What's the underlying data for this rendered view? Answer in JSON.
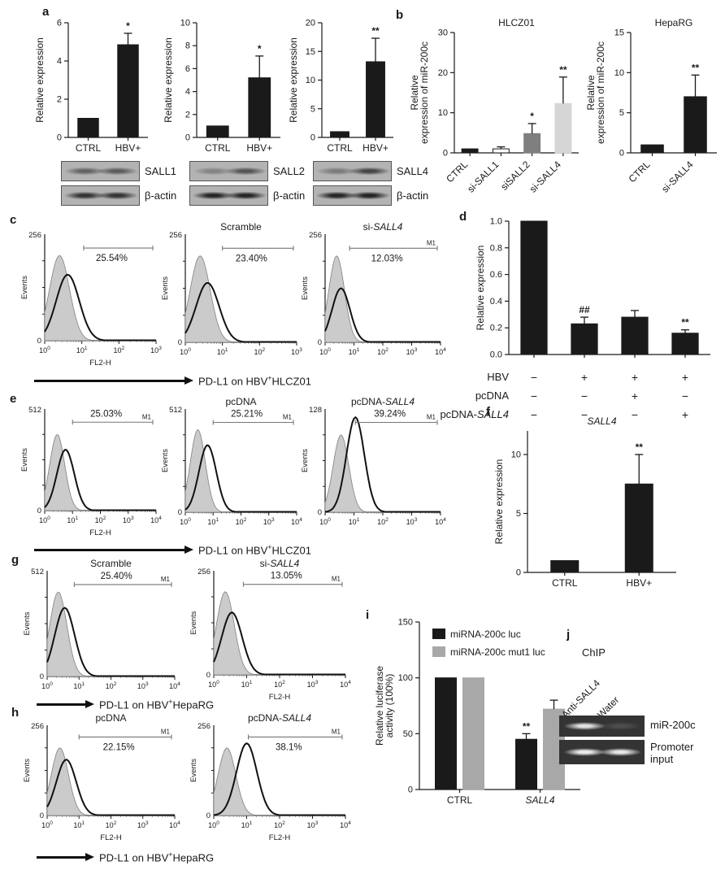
{
  "panels": {
    "a": {
      "label": "a",
      "blots": [
        {
          "target": "SALL1",
          "target_lanes": [
            0.5,
            0.55
          ],
          "control": "β-actin",
          "control_lanes": [
            0.8,
            0.8
          ]
        },
        {
          "target": "SALL2",
          "target_lanes": [
            0.3,
            0.6
          ],
          "control": "β-actin",
          "control_lanes": [
            0.9,
            0.9
          ]
        },
        {
          "target": "SALL4",
          "target_lanes": [
            0.35,
            0.7
          ],
          "control": "β-actin",
          "control_lanes": [
            0.9,
            0.9
          ]
        }
      ]
    },
    "b": {
      "label": "b"
    },
    "c": {
      "label": "c",
      "arrow": {
        "pre": "PD-L1 on HBV",
        "sup": "+",
        "post": "HLCZ01"
      }
    },
    "d": {
      "label": "d",
      "rows": [
        {
          "label": "HBV",
          "label_italic": "",
          "values": [
            "−",
            "+",
            "+",
            "+"
          ]
        },
        {
          "label": "pcDNA",
          "label_italic": "",
          "values": [
            "−",
            "−",
            "+",
            "−"
          ]
        },
        {
          "label": "pcDNA-",
          "label_italic": "SALL4",
          "values": [
            "−",
            "−",
            "−",
            "+"
          ]
        }
      ]
    },
    "e": {
      "label": "e",
      "arrow": {
        "pre": "PD-L1 on HBV",
        "sup": "+",
        "post": "HLCZ01"
      }
    },
    "f": {
      "label": "f"
    },
    "g": {
      "label": "g",
      "arrow": {
        "pre": "PD-L1 on HBV",
        "sup": "+",
        "post": "HepaRG"
      }
    },
    "h": {
      "label": "h",
      "arrow": {
        "pre": "PD-L1 on HBV",
        "sup": "+",
        "post": "HepaRG"
      }
    },
    "i": {
      "label": "i"
    },
    "j": {
      "label": "j",
      "title": "ChIP",
      "lanes": [
        "Anti-SALL4",
        "Water"
      ],
      "gels": [
        {
          "label": "miR-200c",
          "lanes": [
            0.85,
            0.12
          ]
        },
        {
          "label": "Promoter input",
          "lanes": [
            0.9,
            0.88
          ]
        }
      ]
    }
  },
  "chart_data": [
    {
      "id": "a1",
      "type": "bar",
      "title": "",
      "ylabel": [
        "Relative expression"
      ],
      "ymax": 6,
      "yticks": [
        0,
        2,
        4,
        6
      ],
      "categories": [
        "CTRL",
        "HBV+"
      ],
      "values": [
        1,
        4.85
      ],
      "errors": [
        0,
        0.6
      ],
      "sig": [
        "",
        "*"
      ],
      "bar_colors": [
        "#1a1a1a",
        "#1a1a1a"
      ]
    },
    {
      "id": "a2",
      "type": "bar",
      "title": "",
      "ylabel": [
        "Relative expression"
      ],
      "ymax": 10,
      "yticks": [
        0,
        2,
        4,
        6,
        8,
        10
      ],
      "categories": [
        "CTRL",
        "HBV+"
      ],
      "values": [
        1,
        5.2
      ],
      "errors": [
        0,
        1.9
      ],
      "sig": [
        "",
        "*"
      ],
      "bar_colors": [
        "#1a1a1a",
        "#1a1a1a"
      ]
    },
    {
      "id": "a3",
      "type": "bar",
      "title": "",
      "ylabel": [
        "Relative expression"
      ],
      "ymax": 20,
      "yticks": [
        0,
        5,
        10,
        15,
        20
      ],
      "categories": [
        "CTRL",
        "HBV+"
      ],
      "values": [
        1,
        13.2
      ],
      "errors": [
        0,
        4.1
      ],
      "sig": [
        "",
        "**"
      ],
      "bar_colors": [
        "#1a1a1a",
        "#1a1a1a"
      ]
    },
    {
      "id": "b1",
      "type": "bar",
      "title": "HLCZ01",
      "ylabel": [
        "Relative",
        "expression of miR-200c"
      ],
      "ymax": 30,
      "yticks": [
        0,
        10,
        20,
        30
      ],
      "categories": [
        "CTRL",
        "si-SALL1",
        "siSALL2",
        "si-SALL4"
      ],
      "values": [
        1,
        1,
        4.8,
        12.3
      ],
      "errors": [
        0,
        0.5,
        2.5,
        6.6
      ],
      "sig": [
        "",
        "",
        "*",
        "**"
      ],
      "bar_colors": [
        "#1a1a1a",
        "#ffffff",
        "#7f7f7f",
        "#d6d6d6"
      ],
      "rotate": true
    },
    {
      "id": "b2",
      "type": "bar",
      "title": "HepaRG",
      "ylabel": [
        "Relative",
        "expression of miR-200c"
      ],
      "ymax": 15,
      "yticks": [
        0,
        5,
        10,
        15
      ],
      "categories": [
        "CTRL",
        "si-SALL4"
      ],
      "values": [
        1,
        7
      ],
      "errors": [
        0,
        2.7
      ],
      "sig": [
        "",
        "**"
      ],
      "bar_colors": [
        "#1a1a1a",
        "#1a1a1a"
      ],
      "rotate": true
    },
    {
      "id": "d",
      "type": "bar",
      "title": "",
      "ylabel": [
        "Relative expression"
      ],
      "ymax": 1,
      "yticks": [
        "0.0",
        "0.2",
        "0.4",
        "0.6",
        "0.8",
        "1.0"
      ],
      "categories": [
        "",
        "",
        "",
        ""
      ],
      "values": [
        1,
        0.23,
        0.28,
        0.16
      ],
      "errors": [
        0,
        0.05,
        0.05,
        0.025
      ],
      "sig": [
        "",
        "##",
        "",
        "**"
      ],
      "bar_colors": [
        "#1a1a1a",
        "#1a1a1a",
        "#1a1a1a",
        "#1a1a1a"
      ]
    },
    {
      "id": "f",
      "type": "bar",
      "title": "SALL4",
      "title_italic": true,
      "ylabel": [
        "Relative expression"
      ],
      "ymax": 10,
      "axis_max": 12,
      "yticks": [
        0,
        5,
        10
      ],
      "categories": [
        "CTRL",
        "HBV+"
      ],
      "values": [
        1,
        7.5
      ],
      "errors": [
        0,
        2.5
      ],
      "sig": [
        "",
        "**"
      ],
      "bar_colors": [
        "#1a1a1a",
        "#1a1a1a"
      ]
    },
    {
      "id": "i",
      "type": "grouped_bar",
      "title": "",
      "ylabel": [
        "Relative luciferase",
        "activity (100%)"
      ],
      "ymax": 150,
      "yticks": [
        0,
        50,
        100,
        150
      ],
      "categories": [
        "CTRL",
        "SALL4"
      ],
      "categories_italic": [
        false,
        true
      ],
      "series": [
        {
          "name": "miRNA-200c luc",
          "color": "#1a1a1a",
          "values": [
            100,
            45
          ],
          "errors": [
            0,
            5
          ],
          "sig": [
            "",
            "**"
          ]
        },
        {
          "name": "miRNA-200c mut1 luc",
          "color": "#a8a8a8",
          "values": [
            100,
            72
          ],
          "errors": [
            0,
            8
          ],
          "sig": [
            "",
            ""
          ]
        }
      ]
    },
    {
      "id": "c1",
      "type": "flow",
      "title": "",
      "title_italic": "",
      "ymax": "256",
      "ylabel": "Events",
      "percent": "25.54%",
      "gate_label": "",
      "pct_pos": "below",
      "xlabel": "FL2-H",
      "decades": 3,
      "ctrl_peak": 0.4,
      "ctrl_amp": 0.8,
      "sample_peak": 0.62,
      "sample_amp": 0.62,
      "gate_start": 1.05
    },
    {
      "id": "c2",
      "type": "flow",
      "title": "Scramble",
      "title_italic": "",
      "ymax": "256",
      "ylabel": "Events",
      "percent": "23.40%",
      "gate_label": "",
      "pct_pos": "below",
      "xlabel": "",
      "decades": 3,
      "ctrl_peak": 0.4,
      "ctrl_amp": 0.8,
      "sample_peak": 0.6,
      "sample_amp": 0.55,
      "gate_start": 1.0
    },
    {
      "id": "c3",
      "type": "flow",
      "title": "si-",
      "title_italic": "SALL4",
      "ymax": "256",
      "ylabel": "Events",
      "percent": "12.03%",
      "gate_label": "M1",
      "pct_pos": "below",
      "xlabel": "",
      "decades": 4,
      "ctrl_peak": 0.4,
      "ctrl_amp": 0.8,
      "sample_peak": 0.55,
      "sample_amp": 0.5,
      "gate_start": 0.85
    },
    {
      "id": "e1",
      "type": "flow",
      "title": "",
      "title_italic": "",
      "ymax": "512",
      "ylabel": "Events",
      "percent": "25.03%",
      "gate_label": "M1",
      "pct_pos": "above",
      "xlabel": "FL2-H",
      "decades": 4,
      "ctrl_peak": 0.45,
      "ctrl_amp": 0.75,
      "sample_peak": 0.75,
      "sample_amp": 0.6,
      "gate_start": 1.0
    },
    {
      "id": "e2",
      "type": "flow",
      "title": "pcDNA",
      "title_italic": "",
      "ymax": "512",
      "ylabel": "Events",
      "percent": "25.21%",
      "gate_label": "M1",
      "pct_pos": "above",
      "xlabel": "",
      "decades": 4,
      "ctrl_peak": 0.45,
      "ctrl_amp": 0.8,
      "sample_peak": 0.8,
      "sample_amp": 0.65,
      "gate_start": 1.0
    },
    {
      "id": "e3",
      "type": "flow",
      "title": "pcDNA-",
      "title_italic": "SALL4",
      "ymax": "128",
      "ylabel": "Events",
      "percent": "39.24%",
      "gate_label": "M1",
      "pct_pos": "above",
      "xlabel": "",
      "decades": 4,
      "ctrl_peak": 0.55,
      "ctrl_amp": 0.75,
      "sample_peak": 1.05,
      "sample_amp": 0.92,
      "gate_start": 1.05
    },
    {
      "id": "g1",
      "type": "flow",
      "title": "Scramble",
      "title_italic": "",
      "ymax": "512",
      "ylabel": "Events",
      "percent": "25.40%",
      "gate_label": "M1",
      "pct_pos": "above",
      "xlabel": "",
      "decades": 4,
      "ctrl_peak": 0.35,
      "ctrl_amp": 0.8,
      "sample_peak": 0.55,
      "sample_amp": 0.65,
      "gate_start": 0.85
    },
    {
      "id": "g2",
      "type": "flow",
      "title": "si-",
      "title_italic": "SALL4",
      "ymax": "256",
      "ylabel": "Events",
      "percent": "13.05%",
      "gate_label": "M1",
      "pct_pos": "above",
      "xlabel": "FL2-H",
      "decades": 4,
      "ctrl_peak": 0.35,
      "ctrl_amp": 0.8,
      "sample_peak": 0.55,
      "sample_amp": 0.6,
      "gate_start": 0.9
    },
    {
      "id": "h1",
      "type": "flow",
      "title": "pcDNA",
      "title_italic": "",
      "ymax": "256",
      "ylabel": "Events",
      "percent": "22.15%",
      "gate_label": "M1",
      "pct_pos": "below",
      "xlabel": "FL2-H",
      "decades": 4,
      "ctrl_peak": 0.4,
      "ctrl_amp": 0.75,
      "sample_peak": 0.6,
      "sample_amp": 0.62,
      "gate_start": 1.0
    },
    {
      "id": "h2",
      "type": "flow",
      "title": "pcDNA-",
      "title_italic": "SALL4",
      "ymax": "256",
      "ylabel": "Events",
      "percent": "38.1%",
      "gate_label": "M1",
      "pct_pos": "below",
      "xlabel": "FL2-H",
      "decades": 4,
      "ctrl_peak": 0.4,
      "ctrl_amp": 0.75,
      "sample_peak": 1.0,
      "sample_amp": 0.8,
      "gate_start": 1.05
    }
  ]
}
